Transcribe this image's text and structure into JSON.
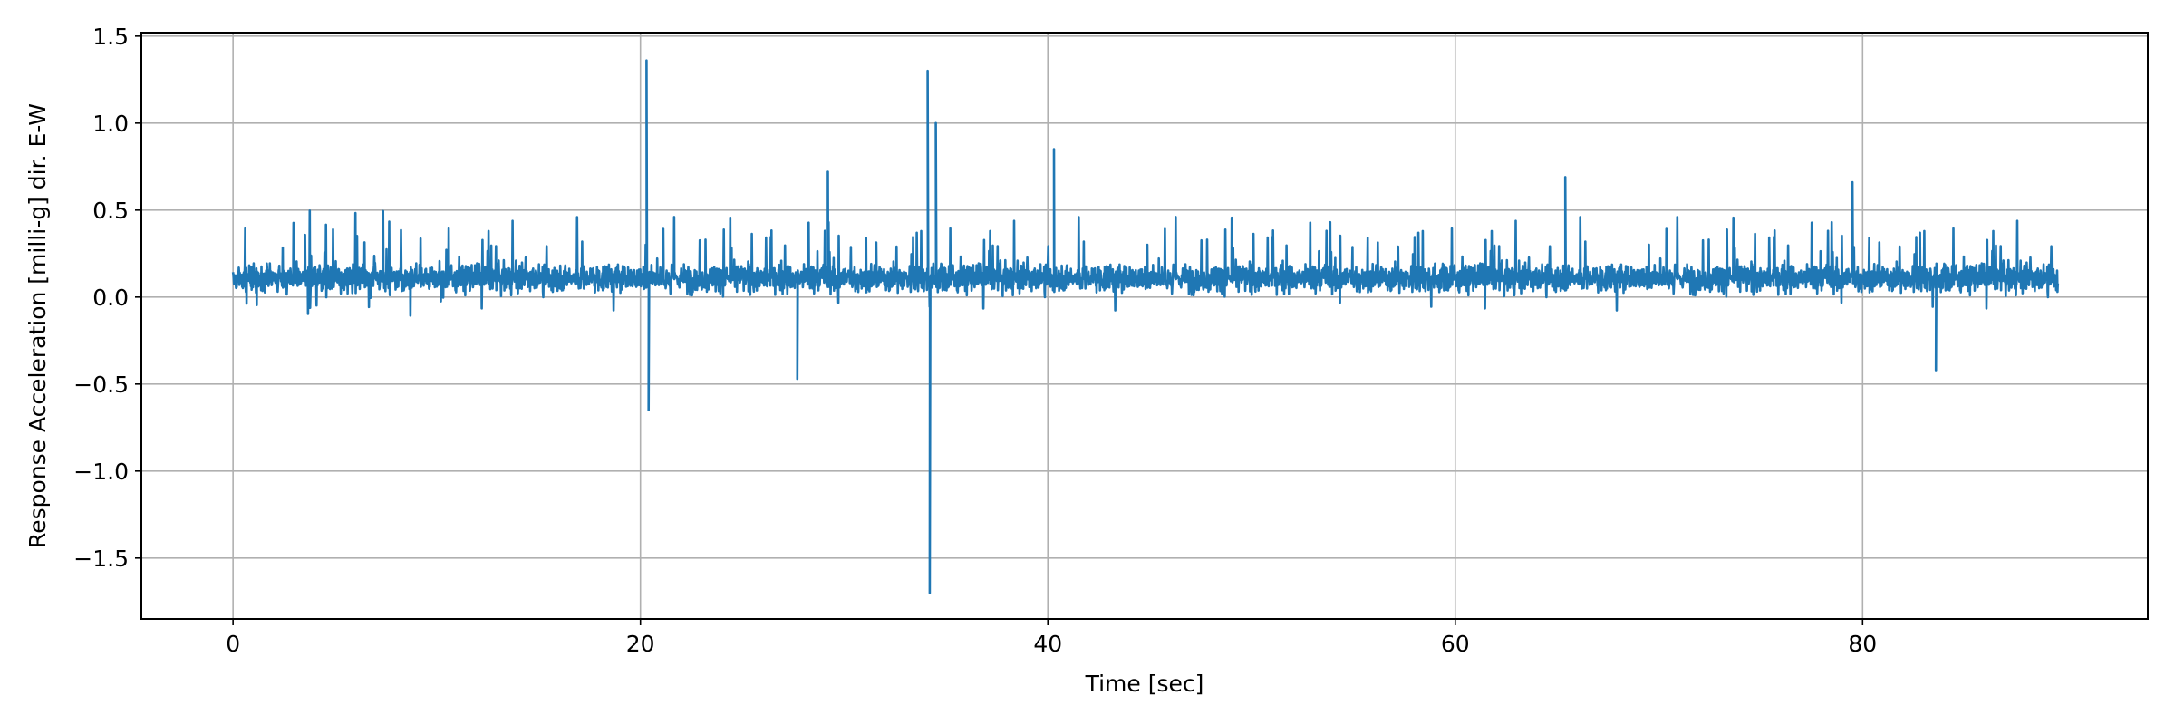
{
  "chart_data": {
    "type": "line",
    "title": "",
    "xlabel": "Time [sec]",
    "ylabel": "Response Acceleration [milli-g] dir. E-W",
    "xlim": [
      -4.5,
      94.0
    ],
    "ylim": [
      -1.85,
      1.52
    ],
    "x_ticks": [
      0,
      20,
      40,
      60,
      80
    ],
    "x_tick_labels": [
      "0",
      "20",
      "40",
      "60",
      "80"
    ],
    "y_ticks": [
      1.5,
      1.0,
      0.5,
      0.0,
      -0.5,
      -1.0,
      -1.5
    ],
    "y_tick_labels": [
      "1.5",
      "1.0",
      "0.5",
      "0.0",
      "−0.5",
      "−1.0",
      "−1.5"
    ],
    "grid": true,
    "legend": "none",
    "series": [
      {
        "color": "#1f77b4",
        "t_start": 0.0,
        "t_end": 89.6,
        "baseline_mean": 0.11,
        "typical_range": [
          -0.25,
          0.5
        ],
        "spikes": [
          {
            "t": 20.3,
            "value": 1.36
          },
          {
            "t": 20.4,
            "value": -0.65
          },
          {
            "t": 34.1,
            "value": 1.3
          },
          {
            "t": 34.2,
            "value": -1.7
          },
          {
            "t": 34.5,
            "value": 1.0
          },
          {
            "t": 40.3,
            "value": 0.85
          },
          {
            "t": 27.7,
            "value": -0.47
          },
          {
            "t": 29.2,
            "value": 0.72
          },
          {
            "t": 65.4,
            "value": 0.69
          },
          {
            "t": 79.5,
            "value": 0.66
          },
          {
            "t": 83.6,
            "value": -0.42
          }
        ]
      }
    ]
  }
}
